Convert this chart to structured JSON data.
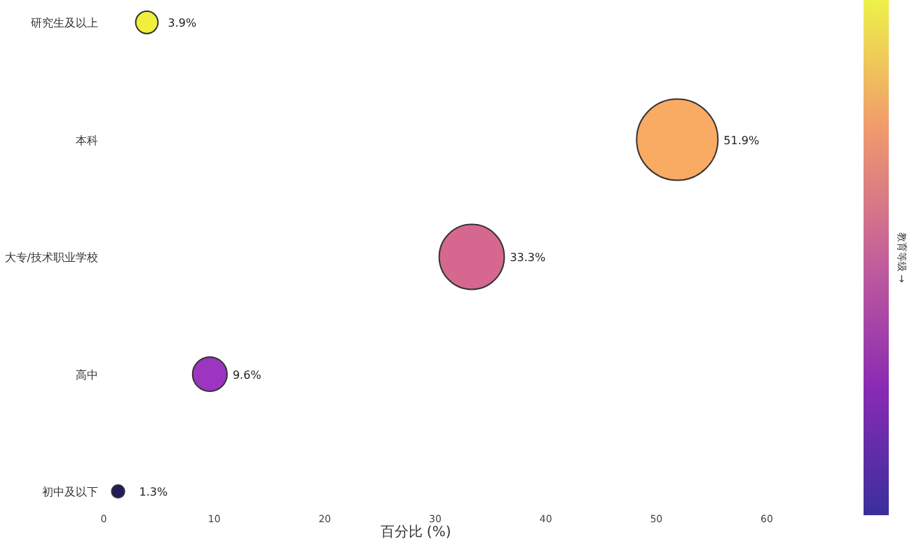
{
  "chart_data": {
    "type": "bubble",
    "xlabel": "百分比 (%)",
    "clabel": "教育等级 →",
    "categories": [
      "研究生及以上",
      "本科",
      "大专/技术职业学校",
      "高中",
      "初中及以下"
    ],
    "values": [
      3.9,
      51.9,
      33.3,
      9.6,
      1.3
    ],
    "sizes": [
      0.075,
      1,
      0.64,
      0.18,
      0.025
    ],
    "value_labels": [
      "3.9%",
      "51.9%",
      "33.3%",
      "9.6%",
      "1.3%"
    ],
    "colors": [
      "#f2ee3e",
      "#f9aa63",
      "#d6688f",
      "#9c35c0",
      "#211b5c"
    ],
    "orientation": "horizontal",
    "xlim": [
      0,
      60
    ],
    "xticks": [
      0,
      10,
      20,
      30,
      40,
      50,
      60
    ],
    "grid": false
  }
}
